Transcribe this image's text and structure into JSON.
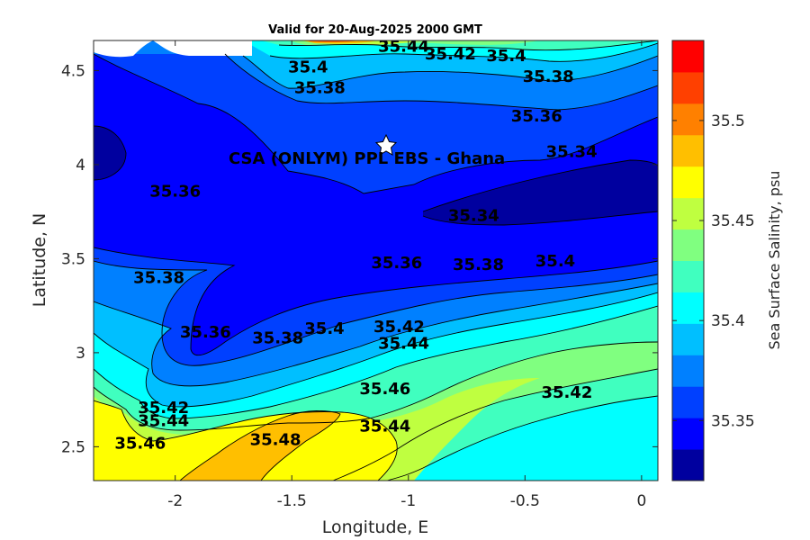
{
  "chart_data": {
    "type": "contour",
    "title": "Valid for 20-Aug-2025 2000 GMT",
    "xlabel": "Longitude, E",
    "ylabel": "Latitude, N",
    "xlim": [
      -2.35,
      0.07
    ],
    "ylim": [
      2.32,
      4.66
    ],
    "xticks": [
      -2,
      -1.5,
      -1,
      -0.5,
      0
    ],
    "xtick_labels": [
      "-2",
      "-1.5",
      "-1",
      "-0.5",
      "0"
    ],
    "yticks": [
      2.5,
      3,
      3.5,
      4,
      4.5
    ],
    "ytick_labels": [
      "2.5",
      "3",
      "3.5",
      "4",
      "4.5"
    ],
    "colorbar": {
      "label": "Sea Surface Salinity, psu",
      "range": [
        35.32,
        35.54
      ],
      "levels": [
        35.32,
        35.34,
        35.36,
        35.38,
        35.4,
        35.42,
        35.44,
        35.46,
        35.48,
        35.5,
        35.52,
        35.54
      ],
      "colors": [
        "#00009f",
        "#0000ff",
        "#0040ff",
        "#0080ff",
        "#00bfff",
        "#00ffff",
        "#40ffbf",
        "#80ff80",
        "#bfff40",
        "#ffff00",
        "#ffbf00",
        "#ff8000",
        "#ff4000",
        "#ff0000"
      ],
      "ticks": [
        35.35,
        35.4,
        35.45,
        35.5
      ],
      "tick_labels": [
        "35.35",
        "35.4",
        "35.45",
        "35.5"
      ]
    },
    "site": {
      "label": "CSA (ONLYM) PPL EBS  - Ghana",
      "lon": -1.1,
      "lat": 4.11,
      "marker": "white star"
    },
    "contour_labels": [
      {
        "text": "35.44",
        "lon": -1.02,
        "lat": 4.6
      },
      {
        "text": "35.42",
        "lon": -0.82,
        "lat": 4.56
      },
      {
        "text": "35.4",
        "lon": -0.58,
        "lat": 4.55
      },
      {
        "text": "35.38",
        "lon": -0.4,
        "lat": 4.44
      },
      {
        "text": "35.4",
        "lon": -1.43,
        "lat": 4.49
      },
      {
        "text": "35.38",
        "lon": -1.38,
        "lat": 4.38
      },
      {
        "text": "35.36",
        "lon": -0.45,
        "lat": 4.23
      },
      {
        "text": "35.34",
        "lon": -0.3,
        "lat": 4.04
      },
      {
        "text": "35.36",
        "lon": -2.0,
        "lat": 3.83
      },
      {
        "text": "35.34",
        "lon": -0.72,
        "lat": 3.7
      },
      {
        "text": "35.36",
        "lon": -1.05,
        "lat": 3.45
      },
      {
        "text": "35.38",
        "lon": -0.7,
        "lat": 3.44
      },
      {
        "text": "35.4",
        "lon": -0.37,
        "lat": 3.46
      },
      {
        "text": "35.38",
        "lon": -2.07,
        "lat": 3.37
      },
      {
        "text": "35.36",
        "lon": -1.87,
        "lat": 3.08
      },
      {
        "text": "35.38",
        "lon": -1.56,
        "lat": 3.05
      },
      {
        "text": "35.4",
        "lon": -1.36,
        "lat": 3.1
      },
      {
        "text": "35.42",
        "lon": -1.04,
        "lat": 3.11
      },
      {
        "text": "35.44",
        "lon": -1.02,
        "lat": 3.02
      },
      {
        "text": "35.46",
        "lon": -1.1,
        "lat": 2.78
      },
      {
        "text": "35.42",
        "lon": -0.32,
        "lat": 2.76
      },
      {
        "text": "35.42",
        "lon": -2.05,
        "lat": 2.68
      },
      {
        "text": "35.44",
        "lon": -2.05,
        "lat": 2.61
      },
      {
        "text": "35.46",
        "lon": -2.15,
        "lat": 2.49
      },
      {
        "text": "35.48",
        "lon": -1.57,
        "lat": 2.51
      },
      {
        "text": "35.44",
        "lon": -1.1,
        "lat": 2.58
      }
    ]
  }
}
